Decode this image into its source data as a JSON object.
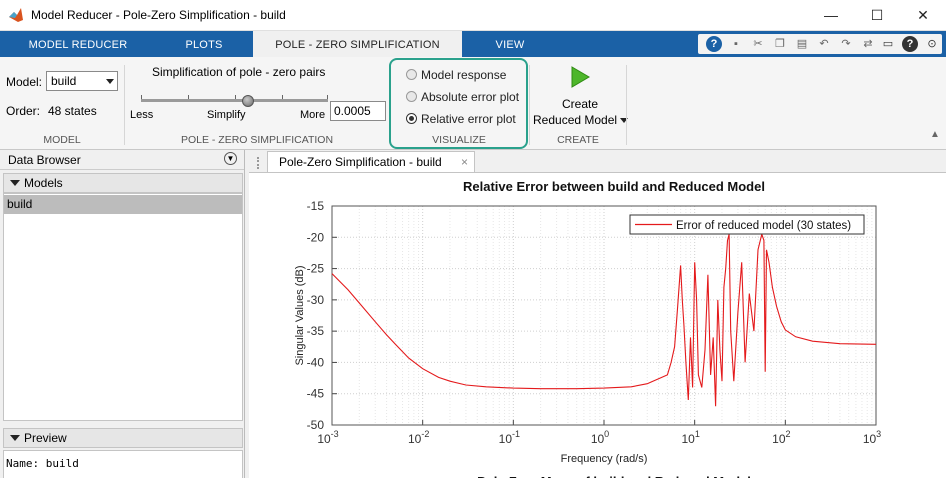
{
  "window": {
    "title": "Model Reducer - Pole-Zero Simplification - build",
    "minimize": "—",
    "maximize": "☐",
    "close": "✕"
  },
  "tabs": [
    {
      "label": "MODEL REDUCER"
    },
    {
      "label": "PLOTS"
    },
    {
      "label": "POLE - ZERO SIMPLIFICATION"
    },
    {
      "label": "VIEW"
    }
  ],
  "quick_access": {
    "search_icon": "search-icon",
    "help": "?"
  },
  "toolstrip": {
    "model": {
      "label": "Model:",
      "value": "build",
      "order_label": "Order:",
      "order_value": "48 states",
      "section": "MODEL"
    },
    "simplification": {
      "title": "Simplification of pole - zero pairs",
      "less": "Less",
      "simplify": "Simplify",
      "more": "More",
      "tolerance": "0.0005",
      "slider_level": 0.57,
      "section": "POLE - ZERO SIMPLIFICATION"
    },
    "visualize": {
      "options": [
        {
          "label": "Model response",
          "selected": false
        },
        {
          "label": "Absolute error plot",
          "selected": false
        },
        {
          "label": "Relative error plot",
          "selected": true
        }
      ],
      "section": "VISUALIZE"
    },
    "create": {
      "line1": "Create",
      "line2": "Reduced Model",
      "section": "CREATE"
    }
  },
  "data_browser": {
    "title": "Data Browser",
    "models_header": "Models",
    "models": [
      "build"
    ],
    "preview_header": "Preview",
    "preview_text": "Name: build"
  },
  "document_tab": {
    "label": "Pole-Zero Simplification - build",
    "close": "×"
  },
  "chart_data": {
    "type": "line",
    "title": "Relative Error between build and Reduced Model",
    "xlabel": "Frequency (rad/s)",
    "ylabel": "Singular Values (dB)",
    "xscale": "log",
    "xlim": [
      0.001,
      1000
    ],
    "ylim": [
      -50,
      -15
    ],
    "yticks": [
      "-15",
      "-20",
      "-25",
      "-30",
      "-35",
      "-40",
      "-45",
      "-50"
    ],
    "xticks": [
      {
        "base": "10",
        "exp": "-3"
      },
      {
        "base": "10",
        "exp": "-2"
      },
      {
        "base": "10",
        "exp": "-1"
      },
      {
        "base": "10",
        "exp": "0"
      },
      {
        "base": "10",
        "exp": "1"
      },
      {
        "base": "10",
        "exp": "2"
      },
      {
        "base": "10",
        "exp": "3"
      }
    ],
    "grid": true,
    "legend_position": "top-right",
    "series": [
      {
        "name": "Error of reduced model (30 states)",
        "color": "#e41a1c",
        "points": [
          [
            0.001,
            -25.8
          ],
          [
            0.0015,
            -28.4
          ],
          [
            0.002,
            -30.5
          ],
          [
            0.003,
            -33.5
          ],
          [
            0.004,
            -35.6
          ],
          [
            0.005,
            -37.1
          ],
          [
            0.007,
            -39.3
          ],
          [
            0.01,
            -41.0
          ],
          [
            0.015,
            -42.4
          ],
          [
            0.02,
            -43.0
          ],
          [
            0.03,
            -43.6
          ],
          [
            0.05,
            -43.9
          ],
          [
            0.1,
            -44.1
          ],
          [
            0.2,
            -44.2
          ],
          [
            0.5,
            -44.2
          ],
          [
            1,
            -44.1
          ],
          [
            2,
            -43.9
          ],
          [
            3,
            -43.4
          ],
          [
            4,
            -42.6
          ],
          [
            5,
            -42.0
          ],
          [
            5.5,
            -40.0
          ],
          [
            6,
            -37.5
          ],
          [
            6.5,
            -31.0
          ],
          [
            7,
            -24.5
          ],
          [
            7.3,
            -30.0
          ],
          [
            7.6,
            -34.0
          ],
          [
            8,
            -40.0
          ],
          [
            8.5,
            -46.0
          ],
          [
            9,
            -36.0
          ],
          [
            9.5,
            -44.0
          ],
          [
            10,
            -24.0
          ],
          [
            10.5,
            -30.0
          ],
          [
            11,
            -42.0
          ],
          [
            12,
            -44.0
          ],
          [
            13,
            -38.0
          ],
          [
            14,
            -26.0
          ],
          [
            15,
            -42.0
          ],
          [
            16,
            -36.0
          ],
          [
            17,
            -47.0
          ],
          [
            18,
            -30.0
          ],
          [
            19,
            -38.0
          ],
          [
            20,
            -43.0
          ],
          [
            21,
            -28.0
          ],
          [
            22,
            -25.0
          ],
          [
            23,
            -20.5
          ],
          [
            24,
            -19.5
          ],
          [
            25,
            -35.0
          ],
          [
            27,
            -43.0
          ],
          [
            30,
            -32.0
          ],
          [
            33,
            -24.0
          ],
          [
            36,
            -40.0
          ],
          [
            40,
            -29.0
          ],
          [
            45,
            -35.0
          ],
          [
            50,
            -22.0
          ],
          [
            55,
            -19.5
          ],
          [
            58,
            -20.5
          ],
          [
            60,
            -41.5
          ],
          [
            62,
            -22.0
          ],
          [
            66,
            -24.0
          ],
          [
            72,
            -28.0
          ],
          [
            80,
            -31.0
          ],
          [
            90,
            -33.5
          ],
          [
            100,
            -34.8
          ],
          [
            130,
            -35.9
          ],
          [
            200,
            -36.6
          ],
          [
            400,
            -37.0
          ],
          [
            1000,
            -37.1
          ]
        ]
      }
    ]
  },
  "next_chart_title": "Pole-Zero Maps of build and Reduced Model"
}
